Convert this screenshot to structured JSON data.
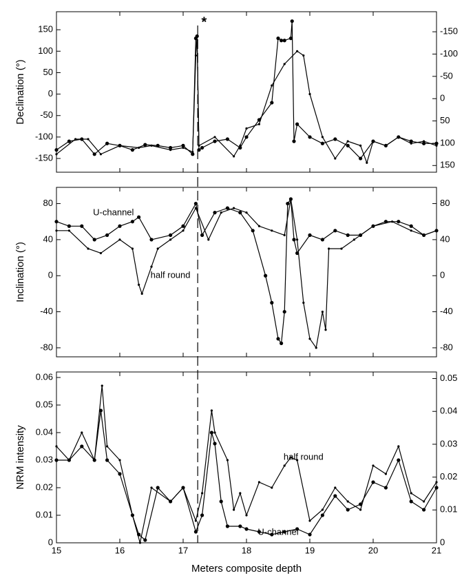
{
  "chart_data": [
    {
      "type": "line",
      "y_label": "Declination (°)",
      "annotations": [
        "*"
      ],
      "vline": 17.23,
      "xlim": [
        15,
        21
      ],
      "xticks": [
        15,
        16,
        17,
        18,
        19,
        20,
        21
      ],
      "ylim": [
        -182,
        192
      ],
      "yticks": [
        -150,
        -100,
        -50,
        0,
        50,
        100,
        150
      ],
      "y2lim": [
        165,
        -195
      ],
      "y2ticks": [
        -150,
        -100,
        -50,
        0,
        50,
        100,
        150
      ],
      "series": [
        {
          "name": "U-channel",
          "color": "#000000",
          "marker_size": 2.6,
          "x": [
            15,
            15.2,
            15.4,
            15.6,
            15.8,
            16.0,
            16.2,
            16.4,
            16.6,
            16.8,
            17.0,
            17.15,
            17.2,
            17.22,
            17.25,
            17.3,
            17.5,
            17.7,
            17.9,
            18.0,
            18.2,
            18.4,
            18.5,
            18.55,
            18.6,
            18.7,
            18.72,
            18.75,
            18.8,
            19.0,
            19.2,
            19.4,
            19.6,
            19.8,
            20.0,
            20.2,
            20.4,
            20.6,
            20.8,
            21
          ],
          "values": [
            -130,
            -110,
            -105,
            -140,
            -115,
            -120,
            -130,
            -118,
            -120,
            -125,
            -120,
            -140,
            130,
            135,
            -130,
            -125,
            -110,
            -105,
            -125,
            -100,
            -60,
            -20,
            130,
            125,
            125,
            130,
            170,
            -110,
            -70,
            -100,
            -115,
            -105,
            -120,
            -150,
            -110,
            -120,
            -100,
            -110,
            -115,
            -115
          ]
        },
        {
          "name": "half round",
          "color": "#000000",
          "marker_size": 1.6,
          "x": [
            15,
            15.3,
            15.5,
            15.7,
            16,
            16.3,
            16.5,
            16.8,
            17.0,
            17.15,
            17.2,
            17.22,
            17.25,
            17.5,
            17.8,
            17.9,
            18.0,
            18.2,
            18.4,
            18.6,
            18.8,
            18.9,
            19.0,
            19.2,
            19.4,
            19.6,
            19.8,
            19.9,
            20.0,
            20.2,
            20.4,
            20.6,
            20.8,
            21
          ],
          "values": [
            -140,
            -105,
            -105,
            -140,
            -120,
            -125,
            -120,
            -130,
            -125,
            -135,
            90,
            135,
            -120,
            -100,
            -145,
            -120,
            -80,
            -70,
            20,
            70,
            100,
            90,
            0,
            -100,
            -150,
            -110,
            -120,
            -160,
            -110,
            -120,
            -100,
            -115,
            -110,
            -120
          ]
        }
      ]
    },
    {
      "type": "line",
      "y_label": "Inclination (°)",
      "annotations": [
        "U-channel",
        "half round"
      ],
      "xlim": [
        15,
        21
      ],
      "xticks": [
        15,
        16,
        17,
        18,
        19,
        20,
        21
      ],
      "ylim": [
        -90,
        98
      ],
      "yticks": [
        -80,
        -40,
        0,
        40,
        80
      ],
      "y2lim": [
        -90,
        98
      ],
      "y2ticks": [
        -80,
        -40,
        0,
        40,
        80
      ],
      "series": [
        {
          "name": "U-channel",
          "color": "#000000",
          "marker_size": 2.6,
          "x": [
            15,
            15.2,
            15.4,
            15.6,
            15.8,
            16.0,
            16.2,
            16.3,
            16.5,
            16.8,
            17.0,
            17.2,
            17.3,
            17.5,
            17.7,
            17.9,
            18.1,
            18.3,
            18.4,
            18.5,
            18.55,
            18.6,
            18.65,
            18.7,
            18.75,
            18.8,
            19.0,
            19.2,
            19.4,
            19.6,
            19.8,
            20.0,
            20.2,
            20.4,
            20.6,
            20.8,
            21
          ],
          "values": [
            60,
            55,
            55,
            40,
            45,
            55,
            60,
            65,
            40,
            45,
            55,
            80,
            45,
            70,
            75,
            70,
            50,
            0,
            -30,
            -70,
            -75,
            -40,
            80,
            85,
            40,
            25,
            45,
            40,
            50,
            45,
            45,
            55,
            60,
            60,
            55,
            45,
            50
          ]
        },
        {
          "name": "half round",
          "color": "#000000",
          "marker_size": 1.6,
          "x": [
            15,
            15.2,
            15.5,
            15.7,
            16,
            16.2,
            16.3,
            16.35,
            16.5,
            16.6,
            16.8,
            17,
            17.2,
            17.4,
            17.6,
            17.8,
            18.0,
            18.2,
            18.4,
            18.6,
            18.7,
            18.8,
            18.9,
            19.0,
            19.1,
            19.2,
            19.25,
            19.3,
            19.5,
            19.7,
            20,
            20.3,
            20.6,
            20.8,
            21
          ],
          "values": [
            50,
            50,
            30,
            25,
            40,
            30,
            -10,
            -20,
            10,
            30,
            40,
            50,
            75,
            40,
            70,
            75,
            70,
            55,
            50,
            45,
            85,
            40,
            -30,
            -70,
            -80,
            -40,
            -60,
            30,
            30,
            40,
            55,
            60,
            50,
            45,
            50
          ]
        }
      ]
    },
    {
      "type": "line",
      "y_label": "NRM intensity",
      "x_label": "Meters composite depth",
      "annotations": [
        "half round",
        "U-channel"
      ],
      "xlim": [
        15,
        21
      ],
      "xticks": [
        15,
        16,
        17,
        18,
        19,
        20,
        21
      ],
      "ylim": [
        0,
        0.062
      ],
      "yticks": [
        0,
        0.01,
        0.02,
        0.03,
        0.04,
        0.05,
        0.06
      ],
      "y2lim": [
        0,
        0.052
      ],
      "y2ticks": [
        0,
        0.01,
        0.02,
        0.03,
        0.04,
        0.05
      ],
      "series": [
        {
          "name": "U-channel",
          "color": "#000000",
          "marker_size": 2.6,
          "x": [
            15,
            15.2,
            15.4,
            15.6,
            15.7,
            15.8,
            16,
            16.2,
            16.3,
            16.4,
            16.6,
            16.8,
            17,
            17.2,
            17.3,
            17.45,
            17.5,
            17.6,
            17.7,
            17.9,
            18.0,
            18.2,
            18.4,
            18.6,
            18.8,
            19.0,
            19.2,
            19.4,
            19.6,
            19.8,
            20.0,
            20.2,
            20.4,
            20.6,
            20.8,
            21
          ],
          "values": [
            0.03,
            0.03,
            0.035,
            0.03,
            0.048,
            0.03,
            0.025,
            0.01,
            0.003,
            0.001,
            0.02,
            0.015,
            0.02,
            0.004,
            0.01,
            0.04,
            0.036,
            0.015,
            0.006,
            0.006,
            0.005,
            0.004,
            0.003,
            0.004,
            0.005,
            0.003,
            0.01,
            0.017,
            0.012,
            0.014,
            0.022,
            0.02,
            0.03,
            0.015,
            0.012,
            0.02
          ]
        },
        {
          "name": "half round",
          "color": "#000000",
          "marker_size": 1.6,
          "x": [
            15,
            15.2,
            15.4,
            15.6,
            15.72,
            15.8,
            16,
            16.2,
            16.32,
            16.5,
            16.8,
            17,
            17.2,
            17.3,
            17.45,
            17.5,
            17.7,
            17.8,
            17.9,
            18.0,
            18.2,
            18.4,
            18.6,
            18.7,
            18.8,
            19.0,
            19.2,
            19.4,
            19.6,
            19.8,
            20.0,
            20.2,
            20.4,
            20.6,
            20.8,
            21
          ],
          "values": [
            0.035,
            0.03,
            0.04,
            0.03,
            0.057,
            0.035,
            0.03,
            0.01,
            0.0,
            0.02,
            0.015,
            0.02,
            0.008,
            0.018,
            0.048,
            0.04,
            0.03,
            0.012,
            0.018,
            0.01,
            0.022,
            0.02,
            0.028,
            0.031,
            0.03,
            0.008,
            0.012,
            0.02,
            0.015,
            0.012,
            0.028,
            0.025,
            0.035,
            0.018,
            0.015,
            0.022
          ]
        }
      ]
    }
  ]
}
